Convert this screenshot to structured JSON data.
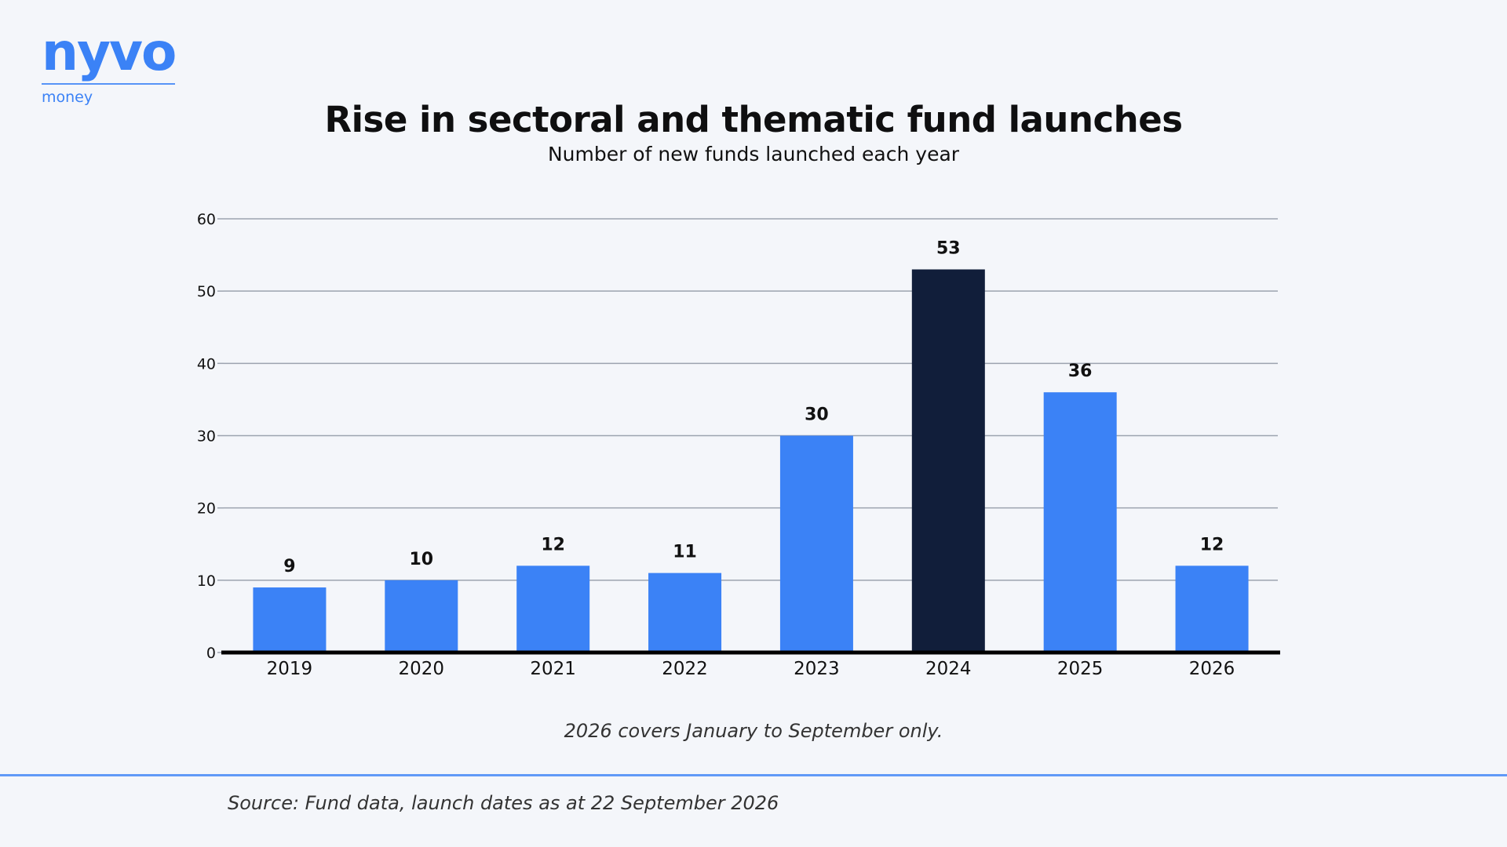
{
  "brand": {
    "name": "nyvo",
    "tagline": "money"
  },
  "header": {
    "title": "Rise in sectoral and thematic fund launches",
    "subtitle": "Number of new funds launched each year"
  },
  "footer": {
    "note": "2026 covers January to September only.",
    "source": "Source: Fund data, launch dates as at 22 September 2026"
  },
  "colors": {
    "accent": "#3b82f6",
    "highlight": "#111e3a",
    "grid": "#9ca3af",
    "axis": "#000000",
    "background": "#f4f6fa"
  },
  "chart_data": {
    "type": "bar",
    "title": "Rise in sectoral and thematic fund launches",
    "subtitle": "Number of new funds launched each year",
    "xlabel": "",
    "ylabel": "",
    "categories": [
      "2019",
      "2020",
      "2021",
      "2022",
      "2023",
      "2024",
      "2025",
      "2026"
    ],
    "values": [
      9,
      10,
      12,
      11,
      30,
      53,
      36,
      12
    ],
    "ylim": [
      0,
      60
    ],
    "yticks": [
      0,
      10,
      20,
      30,
      40,
      50,
      60
    ],
    "highlight_category": "2024",
    "data_labels": true,
    "grid": "horizontal"
  }
}
